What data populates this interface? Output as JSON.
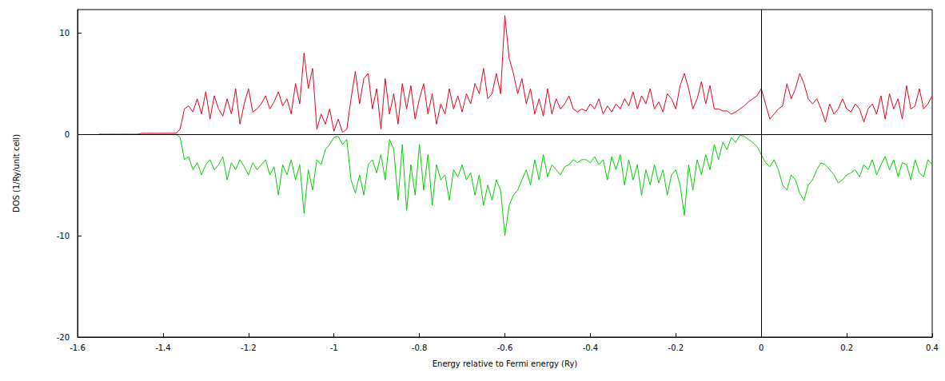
{
  "chart_data": {
    "type": "line",
    "x_label": "Energy relative to Fermi energy (Ry)",
    "y_label": "DOS (1/Ry/unit cell)",
    "x": [
      -1.55,
      -1.54,
      -1.53,
      -1.52,
      -1.51,
      -1.5,
      -1.49,
      -1.48,
      -1.47,
      -1.46,
      -1.45,
      -1.44,
      -1.43,
      -1.42,
      -1.41,
      -1.4,
      -1.39,
      -1.38,
      -1.37,
      -1.36,
      -1.35,
      -1.34,
      -1.33,
      -1.32,
      -1.31,
      -1.3,
      -1.29,
      -1.28,
      -1.27,
      -1.26,
      -1.25,
      -1.24,
      -1.23,
      -1.22,
      -1.21,
      -1.2,
      -1.19,
      -1.18,
      -1.17,
      -1.16,
      -1.15,
      -1.14,
      -1.13,
      -1.12,
      -1.11,
      -1.1,
      -1.09,
      -1.08,
      -1.07,
      -1.06,
      -1.05,
      -1.04,
      -1.03,
      -1.02,
      -1.01,
      -1.0,
      -0.99,
      -0.98,
      -0.97,
      -0.96,
      -0.95,
      -0.94,
      -0.93,
      -0.92,
      -0.91,
      -0.9,
      -0.89,
      -0.88,
      -0.87,
      -0.86,
      -0.85,
      -0.84,
      -0.83,
      -0.82,
      -0.81,
      -0.8,
      -0.79,
      -0.78,
      -0.77,
      -0.76,
      -0.75,
      -0.74,
      -0.73,
      -0.72,
      -0.71,
      -0.7,
      -0.69,
      -0.68,
      -0.67,
      -0.66,
      -0.65,
      -0.64,
      -0.63,
      -0.62,
      -0.61,
      -0.6,
      -0.59,
      -0.58,
      -0.57,
      -0.56,
      -0.55,
      -0.54,
      -0.53,
      -0.52,
      -0.51,
      -0.5,
      -0.49,
      -0.48,
      -0.47,
      -0.46,
      -0.45,
      -0.44,
      -0.43,
      -0.42,
      -0.41,
      -0.4,
      -0.39,
      -0.38,
      -0.37,
      -0.36,
      -0.35,
      -0.34,
      -0.33,
      -0.32,
      -0.31,
      -0.3,
      -0.29,
      -0.28,
      -0.27,
      -0.26,
      -0.25,
      -0.24,
      -0.23,
      -0.22,
      -0.21,
      -0.2,
      -0.19,
      -0.18,
      -0.17,
      -0.16,
      -0.15,
      -0.14,
      -0.13,
      -0.12,
      -0.11,
      -0.1,
      -0.09,
      -0.08,
      -0.07,
      -0.06,
      -0.05,
      -0.04,
      -0.03,
      -0.02,
      -0.01,
      0.0,
      0.01,
      0.02,
      0.03,
      0.04,
      0.05,
      0.06,
      0.07,
      0.08,
      0.09,
      0.1,
      0.11,
      0.12,
      0.13,
      0.14,
      0.15,
      0.16,
      0.17,
      0.18,
      0.19,
      0.2,
      0.21,
      0.22,
      0.23,
      0.24,
      0.25,
      0.26,
      0.27,
      0.28,
      0.29,
      0.3,
      0.31,
      0.32,
      0.33,
      0.34,
      0.35,
      0.36,
      0.37,
      0.38,
      0.39,
      0.4
    ],
    "series": [
      {
        "color": "#e8001c",
        "values": [
          0,
          0,
          0,
          0,
          0,
          0,
          0,
          0,
          0,
          0,
          0.1,
          0.1,
          0.1,
          0.1,
          0.1,
          0.1,
          0.1,
          0.1,
          0.1,
          0.5,
          2.5,
          2.8,
          2.2,
          3.5,
          2.0,
          4.2,
          1.5,
          3.8,
          2.5,
          1.8,
          3.5,
          2.0,
          4.5,
          1.0,
          3.0,
          4.5,
          2.2,
          2.5,
          3.0,
          3.8,
          2.5,
          3.2,
          4.2,
          2.8,
          3.5,
          2.0,
          5.0,
          3.0,
          8.0,
          4.5,
          6.5,
          0.5,
          2.0,
          1.0,
          2.5,
          0.3,
          1.5,
          0.2,
          0.5,
          3.5,
          6.2,
          3.0,
          5.5,
          6.0,
          2.5,
          4.5,
          0.5,
          5.5,
          2.0,
          4.0,
          1.0,
          5.0,
          2.5,
          4.8,
          1.5,
          3.5,
          5.0,
          2.0,
          4.0,
          1.0,
          3.0,
          2.0,
          4.5,
          2.5,
          3.8,
          2.2,
          4.0,
          3.0,
          5.0,
          4.0,
          6.5,
          3.5,
          4.0,
          6.0,
          4.0,
          11.7,
          7.5,
          6.0,
          4.0,
          5.5,
          3.0,
          4.5,
          2.0,
          3.5,
          1.8,
          4.5,
          2.0,
          3.5,
          2.5,
          3.0,
          3.8,
          2.5,
          2.2,
          2.5,
          2.3,
          3.0,
          2.5,
          3.5,
          2.0,
          2.8,
          2.2,
          3.0,
          2.5,
          3.5,
          2.8,
          4.2,
          2.5,
          3.8,
          3.0,
          4.5,
          2.5,
          3.2,
          2.2,
          4.0,
          3.5,
          2.5,
          4.8,
          6.0,
          4.5,
          2.5,
          3.5,
          5.2,
          3.0,
          4.8,
          2.5,
          2.5,
          2.3,
          2.3,
          2.0,
          2.2,
          2.5,
          2.8,
          3.2,
          3.5,
          3.8,
          4.5,
          3.0,
          1.5,
          2.0,
          2.5,
          2.8,
          5.0,
          3.5,
          4.5,
          6.0,
          5.0,
          3.5,
          3.0,
          3.5,
          2.5,
          1.2,
          3.0,
          2.0,
          2.5,
          3.5,
          2.5,
          2.2,
          3.0,
          2.5,
          1.2,
          2.5,
          3.0,
          2.0,
          3.8,
          1.5,
          4.0,
          2.5,
          3.5,
          1.5,
          4.8,
          2.5,
          2.8,
          4.5,
          2.5,
          3.0,
          3.8
        ]
      },
      {
        "color": "#00d000",
        "values": [
          0,
          0,
          0,
          0,
          0,
          0,
          0,
          0,
          0,
          0,
          0,
          0,
          0,
          0,
          0,
          0,
          0,
          0,
          0,
          -0.3,
          -2.5,
          -2.2,
          -3.5,
          -2.8,
          -4.0,
          -3.0,
          -2.5,
          -3.5,
          -3.0,
          -2.2,
          -4.5,
          -2.8,
          -3.5,
          -2.5,
          -3.2,
          -4.0,
          -2.8,
          -3.5,
          -3.0,
          -2.5,
          -4.0,
          -3.2,
          -6.0,
          -3.0,
          -4.0,
          -2.5,
          -4.5,
          -3.0,
          -7.8,
          -3.5,
          -5.5,
          -2.5,
          -3.0,
          -1.5,
          -1.0,
          -0.3,
          -0.2,
          -1.0,
          -0.5,
          -4.5,
          -5.8,
          -4.0,
          -6.0,
          -3.0,
          -2.5,
          -3.8,
          -2.0,
          -4.5,
          -0.5,
          -1.5,
          -6.5,
          -1.0,
          -7.5,
          -3.0,
          -6.0,
          -1.0,
          -5.5,
          -2.0,
          -7.0,
          -3.0,
          -4.5,
          -4.0,
          -6.5,
          -3.5,
          -4.2,
          -3.0,
          -4.5,
          -3.8,
          -6.0,
          -4.0,
          -7.0,
          -5.0,
          -6.5,
          -4.5,
          -5.5,
          -10.0,
          -7.0,
          -6.0,
          -5.5,
          -4.5,
          -3.5,
          -5.0,
          -2.5,
          -4.5,
          -2.0,
          -4.2,
          -3.0,
          -3.5,
          -4.0,
          -3.2,
          -3.0,
          -2.5,
          -2.8,
          -2.5,
          -2.5,
          -2.8,
          -2.2,
          -3.0,
          -2.5,
          -4.5,
          -2.2,
          -3.5,
          -2.0,
          -5.0,
          -2.5,
          -4.5,
          -3.0,
          -6.0,
          -3.5,
          -5.0,
          -3.0,
          -4.8,
          -3.5,
          -6.0,
          -4.0,
          -3.5,
          -5.0,
          -8.0,
          -3.0,
          -5.5,
          -2.5,
          -4.0,
          -2.0,
          -3.5,
          -1.0,
          -2.5,
          -0.8,
          -1.5,
          -0.3,
          -0.8,
          -0.1,
          -0.2,
          -0.5,
          -0.8,
          -1.2,
          -2.0,
          -2.8,
          -3.2,
          -2.5,
          -3.5,
          -5.0,
          -5.5,
          -4.0,
          -4.5,
          -5.8,
          -6.5,
          -5.0,
          -4.5,
          -3.5,
          -2.8,
          -3.0,
          -3.5,
          -4.0,
          -4.8,
          -4.5,
          -4.0,
          -3.8,
          -3.5,
          -4.2,
          -3.0,
          -3.5,
          -2.5,
          -4.0,
          -3.0,
          -2.2,
          -3.5,
          -2.5,
          -4.2,
          -2.8,
          -3.0,
          -4.5,
          -2.5,
          -3.8,
          -4.2,
          -2.5,
          -3.0
        ]
      }
    ],
    "xlim": [
      -1.6,
      0.4
    ],
    "xticks": [
      -1.6,
      -1.4,
      -1.2,
      -1,
      -0.8,
      -0.6,
      -0.4,
      -0.2,
      0,
      0.2,
      0.4
    ],
    "ylim": [
      -20,
      12.3
    ],
    "yticks": [
      -20,
      -10,
      0,
      10
    ],
    "grid": false
  }
}
